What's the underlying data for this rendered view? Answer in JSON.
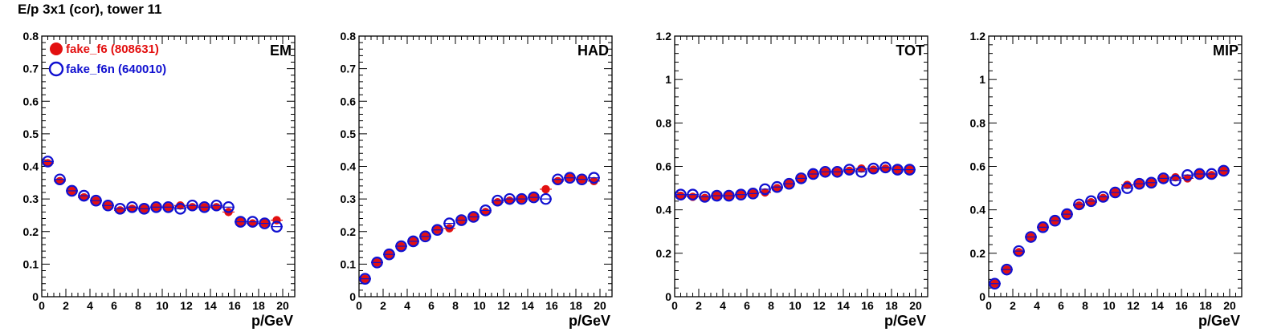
{
  "page_title": "E/p 3x1 (cor), tower 11",
  "colors": {
    "series_filled": "#e31010",
    "series_open": "#1010d0",
    "axes": "#000000"
  },
  "chart_data": [
    {
      "type": "scatter",
      "panel_label": "EM",
      "xlabel": "p/GeV",
      "xlim": [
        0,
        21
      ],
      "ylim": [
        0,
        0.8
      ],
      "xticks": [
        "0",
        "2",
        "4",
        "6",
        "8",
        "10",
        "12",
        "14",
        "16",
        "18",
        "20"
      ],
      "yticks": [
        "0",
        "0.1",
        "0.2",
        "0.3",
        "0.4",
        "0.5",
        "0.6",
        "0.7",
        "0.8"
      ],
      "legend": [
        {
          "name": "fake_f6 (808631)",
          "marker": "filled-circle"
        },
        {
          "name": "fake_f6n (640010)",
          "marker": "open-circle"
        }
      ],
      "x": [
        0.5,
        1.5,
        2.5,
        3.5,
        4.5,
        5.5,
        6.5,
        7.5,
        8.5,
        9.5,
        10.5,
        11.5,
        12.5,
        13.5,
        14.5,
        15.5,
        16.5,
        17.5,
        18.5,
        19.5
      ],
      "series": [
        {
          "name": "fake_f6 (808631)",
          "marker": "filled",
          "values": [
            0.41,
            0.355,
            0.325,
            0.305,
            0.295,
            0.28,
            0.265,
            0.27,
            0.27,
            0.275,
            0.275,
            0.28,
            0.275,
            0.275,
            0.275,
            0.26,
            0.23,
            0.225,
            0.225,
            0.235
          ]
        },
        {
          "name": "fake_f6n (640010)",
          "marker": "open",
          "values": [
            0.415,
            0.36,
            0.325,
            0.31,
            0.295,
            0.28,
            0.27,
            0.275,
            0.27,
            0.275,
            0.275,
            0.27,
            0.28,
            0.275,
            0.28,
            0.275,
            0.23,
            0.23,
            0.225,
            0.215
          ]
        }
      ]
    },
    {
      "type": "scatter",
      "panel_label": "HAD",
      "xlabel": "p/GeV",
      "xlim": [
        0,
        21
      ],
      "ylim": [
        0,
        0.8
      ],
      "xticks": [
        "0",
        "2",
        "4",
        "6",
        "8",
        "10",
        "12",
        "14",
        "16",
        "18",
        "20"
      ],
      "yticks": [
        "0",
        "0.1",
        "0.2",
        "0.3",
        "0.4",
        "0.5",
        "0.6",
        "0.7",
        "0.8"
      ],
      "x": [
        0.5,
        1.5,
        2.5,
        3.5,
        4.5,
        5.5,
        6.5,
        7.5,
        8.5,
        9.5,
        10.5,
        11.5,
        12.5,
        13.5,
        14.5,
        15.5,
        16.5,
        17.5,
        18.5,
        19.5
      ],
      "series": [
        {
          "marker": "filled",
          "values": [
            0.055,
            0.105,
            0.13,
            0.155,
            0.17,
            0.185,
            0.205,
            0.21,
            0.235,
            0.245,
            0.26,
            0.29,
            0.295,
            0.3,
            0.305,
            0.33,
            0.355,
            0.365,
            0.36,
            0.355
          ]
        },
        {
          "marker": "open",
          "values": [
            0.055,
            0.105,
            0.13,
            0.155,
            0.17,
            0.185,
            0.205,
            0.225,
            0.235,
            0.245,
            0.265,
            0.295,
            0.3,
            0.3,
            0.305,
            0.3,
            0.36,
            0.365,
            0.36,
            0.365
          ]
        }
      ]
    },
    {
      "type": "scatter",
      "panel_label": "TOT",
      "xlabel": "p/GeV",
      "xlim": [
        0,
        21
      ],
      "ylim": [
        0,
        1.2
      ],
      "xticks": [
        "0",
        "2",
        "4",
        "6",
        "8",
        "10",
        "12",
        "14",
        "16",
        "18",
        "20"
      ],
      "yticks": [
        "0",
        "0.2",
        "0.4",
        "0.6",
        "0.8",
        "1",
        "1.2"
      ],
      "x": [
        0.5,
        1.5,
        2.5,
        3.5,
        4.5,
        5.5,
        6.5,
        7.5,
        8.5,
        9.5,
        10.5,
        11.5,
        12.5,
        13.5,
        14.5,
        15.5,
        16.5,
        17.5,
        18.5,
        19.5
      ],
      "series": [
        {
          "marker": "filled",
          "values": [
            0.465,
            0.46,
            0.455,
            0.465,
            0.465,
            0.47,
            0.475,
            0.48,
            0.5,
            0.52,
            0.545,
            0.565,
            0.575,
            0.575,
            0.58,
            0.59,
            0.585,
            0.59,
            0.585,
            0.585
          ]
        },
        {
          "marker": "open",
          "values": [
            0.47,
            0.47,
            0.46,
            0.465,
            0.465,
            0.47,
            0.475,
            0.495,
            0.505,
            0.52,
            0.545,
            0.565,
            0.575,
            0.575,
            0.585,
            0.575,
            0.59,
            0.595,
            0.585,
            0.585
          ]
        }
      ]
    },
    {
      "type": "scatter",
      "panel_label": "MIP",
      "xlabel": "p/GeV",
      "xlim": [
        0,
        21
      ],
      "ylim": [
        0,
        1.2
      ],
      "xticks": [
        "0",
        "2",
        "4",
        "6",
        "8",
        "10",
        "12",
        "14",
        "16",
        "18",
        "20"
      ],
      "yticks": [
        "0",
        "0.2",
        "0.4",
        "0.6",
        "0.8",
        "1",
        "1.2"
      ],
      "x": [
        0.5,
        1.5,
        2.5,
        3.5,
        4.5,
        5.5,
        6.5,
        7.5,
        8.5,
        9.5,
        10.5,
        11.5,
        12.5,
        13.5,
        14.5,
        15.5,
        16.5,
        17.5,
        18.5,
        19.5
      ],
      "series": [
        {
          "marker": "filled",
          "values": [
            0.06,
            0.125,
            0.205,
            0.275,
            0.32,
            0.35,
            0.38,
            0.42,
            0.435,
            0.455,
            0.48,
            0.515,
            0.52,
            0.525,
            0.545,
            0.55,
            0.545,
            0.565,
            0.56,
            0.58
          ]
        },
        {
          "marker": "open",
          "values": [
            0.06,
            0.125,
            0.21,
            0.275,
            0.32,
            0.35,
            0.38,
            0.425,
            0.44,
            0.46,
            0.48,
            0.5,
            0.52,
            0.525,
            0.545,
            0.535,
            0.56,
            0.565,
            0.565,
            0.58
          ]
        }
      ]
    }
  ]
}
